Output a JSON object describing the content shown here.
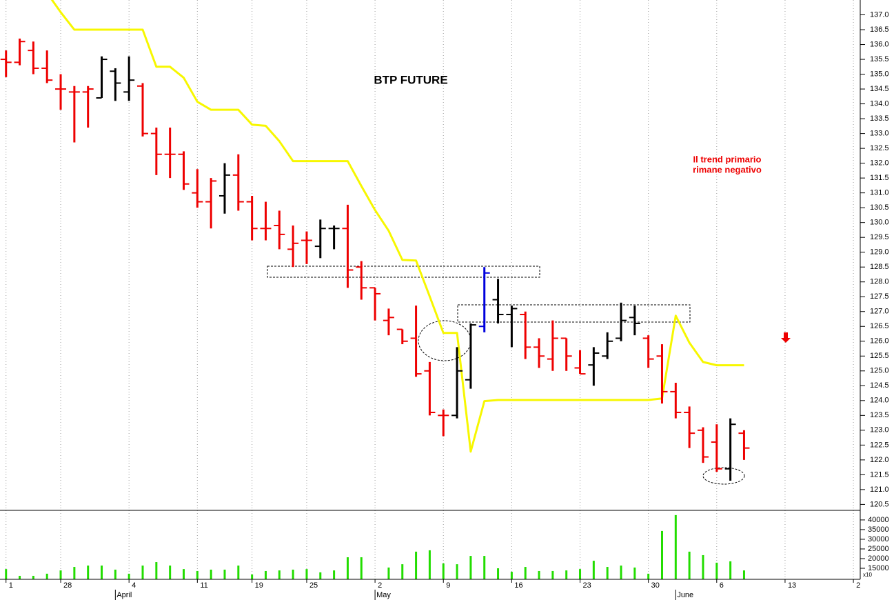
{
  "chart_data": [
    {
      "type": "ohlc",
      "title": "BTP FUTURE",
      "annotations": [
        "Il trend primario",
        "rimane negativo"
      ],
      "x": [
        0,
        1,
        2,
        3,
        4,
        5,
        6,
        7,
        8,
        9,
        10,
        11,
        12,
        13,
        14,
        15,
        16,
        17,
        18,
        19,
        20,
        21,
        22,
        23,
        24,
        25,
        26,
        27,
        28,
        29,
        30,
        31,
        32,
        33,
        34,
        35,
        36,
        37,
        38,
        39,
        40,
        41,
        42,
        43,
        44,
        45,
        46,
        47,
        48,
        49,
        50,
        51,
        52,
        53,
        54
      ],
      "open": [
        135.5,
        135.4,
        135.8,
        135.2,
        134.5,
        134.4,
        134.4,
        134.2,
        135.1,
        134.4,
        134.6,
        133.0,
        132.3,
        132.3,
        131.0,
        130.7,
        130.9,
        131.6,
        130.7,
        129.8,
        129.9,
        129.1,
        129.4,
        129.2,
        129.8,
        129.8,
        128.5,
        127.8,
        126.7,
        126.4,
        126.1,
        125.0,
        123.5,
        123.5,
        124.7,
        126.5,
        127.4,
        126.9,
        126.9,
        125.8,
        125.4,
        126.1,
        125.1,
        125.2,
        125.5,
        126.1,
        126.8,
        126.1,
        125.5,
        124.3,
        123.6,
        123.0,
        122.6,
        121.7,
        122.9
      ],
      "high": [
        135.8,
        136.2,
        136.1,
        135.8,
        135.0,
        134.6,
        134.6,
        135.6,
        135.2,
        135.6,
        134.7,
        133.2,
        133.2,
        132.4,
        131.8,
        131.5,
        132.0,
        132.3,
        130.9,
        130.7,
        130.4,
        129.9,
        129.7,
        130.1,
        129.9,
        130.6,
        128.7,
        127.8,
        127.1,
        126.4,
        127.2,
        125.3,
        123.7,
        125.8,
        126.6,
        128.5,
        128.1,
        127.2,
        127.0,
        126.1,
        126.7,
        126.1,
        125.7,
        125.8,
        126.3,
        127.3,
        127.2,
        126.2,
        125.9,
        124.6,
        123.8,
        123.1,
        123.2,
        123.4,
        123.0
      ],
      "low": [
        134.9,
        135.3,
        135.0,
        134.7,
        133.8,
        132.7,
        133.2,
        134.2,
        134.1,
        134.1,
        132.9,
        131.6,
        131.5,
        131.1,
        130.5,
        129.8,
        130.3,
        130.4,
        129.4,
        129.4,
        129.1,
        128.5,
        128.6,
        128.8,
        129.1,
        127.8,
        127.4,
        126.7,
        126.2,
        125.9,
        124.8,
        123.5,
        122.8,
        123.4,
        124.4,
        126.3,
        126.6,
        125.8,
        125.4,
        125.1,
        125.0,
        125.0,
        124.9,
        124.5,
        125.4,
        126.0,
        126.2,
        125.1,
        123.9,
        123.4,
        122.4,
        121.9,
        121.6,
        121.3,
        122.0
      ],
      "close": [
        135.4,
        136.1,
        135.2,
        134.8,
        134.5,
        134.4,
        134.5,
        135.5,
        134.7,
        134.8,
        133.0,
        132.3,
        132.3,
        131.3,
        130.7,
        131.4,
        131.6,
        130.7,
        129.8,
        129.8,
        129.6,
        129.3,
        129.4,
        129.8,
        129.8,
        128.4,
        127.8,
        127.6,
        126.8,
        126.0,
        124.9,
        123.6,
        123.5,
        125.0,
        126.55,
        128.3,
        126.9,
        127.1,
        125.8,
        125.5,
        126.1,
        125.5,
        124.9,
        125.6,
        126.0,
        126.7,
        126.6,
        125.4,
        124.3,
        123.6,
        122.9,
        122.1,
        121.7,
        123.2,
        122.4
      ],
      "bar_colors": [
        "#ee0000",
        "#ee0000",
        "#ee0000",
        "#ee0000",
        "#ee0000",
        "#ee0000",
        "#ee0000",
        "#000000",
        "#000000",
        "#000000",
        "#ee0000",
        "#ee0000",
        "#ee0000",
        "#ee0000",
        "#ee0000",
        "#ee0000",
        "#000000",
        "#ee0000",
        "#ee0000",
        "#ee0000",
        "#ee0000",
        "#ee0000",
        "#ee0000",
        "#000000",
        "#000000",
        "#ee0000",
        "#ee0000",
        "#ee0000",
        "#ee0000",
        "#ee0000",
        "#ee0000",
        "#ee0000",
        "#ee0000",
        "#000000",
        "#000000",
        "#0000dd",
        "#000000",
        "#000000",
        "#ee0000",
        "#ee0000",
        "#ee0000",
        "#ee0000",
        "#ee0000",
        "#000000",
        "#000000",
        "#000000",
        "#000000",
        "#ee0000",
        "#ee0000",
        "#ee0000",
        "#ee0000",
        "#ee0000",
        "#ee0000",
        "#000000",
        "#ee0000"
      ],
      "line": {
        "color": "#f7f700",
        "values": [
          null,
          null,
          null,
          137.74,
          137.09,
          136.5,
          136.5,
          136.5,
          136.5,
          136.5,
          136.5,
          135.25,
          135.25,
          134.88,
          134.07,
          133.8,
          133.8,
          133.8,
          133.3,
          133.26,
          132.74,
          132.07,
          132.07,
          132.07,
          132.07,
          132.07,
          131.23,
          130.42,
          129.72,
          128.74,
          128.72,
          127.51,
          126.28,
          126.28,
          122.28,
          123.98,
          124.02,
          124.02,
          124.02,
          124.02,
          124.02,
          124.02,
          124.02,
          124.02,
          124.02,
          124.02,
          124.02,
          124.02,
          124.07,
          126.86,
          125.95,
          125.3,
          125.19,
          125.19,
          125.19
        ]
      },
      "xlim": [
        -0.44,
        62.5
      ],
      "xticks": [
        {
          "value": 0,
          "label": "1"
        },
        {
          "value": 4,
          "label": "28"
        },
        {
          "value": 9,
          "label": "4"
        },
        {
          "value": 14,
          "label": "11"
        },
        {
          "value": 18,
          "label": "19"
        },
        {
          "value": 22,
          "label": "25"
        },
        {
          "value": 27,
          "label": "2"
        },
        {
          "value": 32,
          "label": "9"
        },
        {
          "value": 37,
          "label": "16"
        },
        {
          "value": 42,
          "label": "23"
        },
        {
          "value": 47,
          "label": "30"
        },
        {
          "value": 52,
          "label": "6"
        },
        {
          "value": 57,
          "label": "13"
        },
        {
          "value": 62,
          "label": "2"
        }
      ],
      "month_ticks": [
        {
          "value": 8,
          "label": "April"
        },
        {
          "value": 27,
          "label": "May"
        },
        {
          "value": 49,
          "label": "June"
        }
      ],
      "ylim": [
        120.3,
        137.5
      ],
      "yticks": [
        120.5,
        {
          "value": 121,
          "label": "121.0"
        },
        121.5,
        {
          "value": 122,
          "label": "122.0"
        },
        122.5,
        {
          "value": 123,
          "label": "123.0"
        },
        123.5,
        {
          "value": 124,
          "label": "124.0"
        },
        124.5,
        {
          "value": 125,
          "label": "125.0"
        },
        125.5,
        {
          "value": 126,
          "label": "126.0"
        },
        126.5,
        {
          "value": 127,
          "label": "127.0"
        },
        127.5,
        {
          "value": 128,
          "label": "128.0"
        },
        128.5,
        {
          "value": 129,
          "label": "129.0"
        },
        129.5,
        {
          "value": 130,
          "label": "130.0"
        },
        130.5,
        {
          "value": 131,
          "label": "131.0"
        },
        131.5,
        {
          "value": 132,
          "label": "132.0"
        },
        132.5,
        {
          "value": 133,
          "label": "133.0"
        },
        133.5,
        {
          "value": 134,
          "label": "134.0"
        },
        134.5,
        {
          "value": 135,
          "label": "135.0"
        },
        135.5,
        {
          "value": 136,
          "label": "136.0"
        },
        136.5,
        {
          "value": 137,
          "label": "137.0"
        }
      ],
      "grid": true
    },
    {
      "type": "bar",
      "unit_label": "x10",
      "color": "#22dd00",
      "x": [
        0,
        1,
        2,
        3,
        4,
        5,
        6,
        7,
        8,
        9,
        10,
        11,
        12,
        13,
        14,
        15,
        16,
        17,
        18,
        19,
        20,
        21,
        22,
        23,
        24,
        25,
        26,
        27,
        28,
        29,
        30,
        31,
        32,
        33,
        34,
        35,
        36,
        37,
        38,
        39,
        40,
        41,
        42,
        43,
        44,
        45,
        46,
        47,
        48,
        49,
        50,
        51,
        52,
        53,
        54
      ],
      "values": [
        14600,
        11100,
        11100,
        12200,
        13900,
        15700,
        16400,
        16400,
        14300,
        12200,
        16400,
        18200,
        16400,
        14600,
        13600,
        14300,
        14300,
        16400,
        11800,
        13600,
        13900,
        14300,
        14600,
        12900,
        13900,
        20700,
        20700,
        9500,
        15400,
        17100,
        23600,
        24300,
        17500,
        17100,
        21400,
        21400,
        15000,
        13200,
        15700,
        13600,
        13600,
        13900,
        14600,
        18900,
        15700,
        16400,
        15400,
        12200,
        34300,
        42500,
        23600,
        21800,
        17900,
        18600,
        13900
      ],
      "ylim": [
        9300,
        44600
      ],
      "yticks": [
        15000,
        20000,
        25000,
        30000,
        35000,
        40000
      ]
    }
  ]
}
